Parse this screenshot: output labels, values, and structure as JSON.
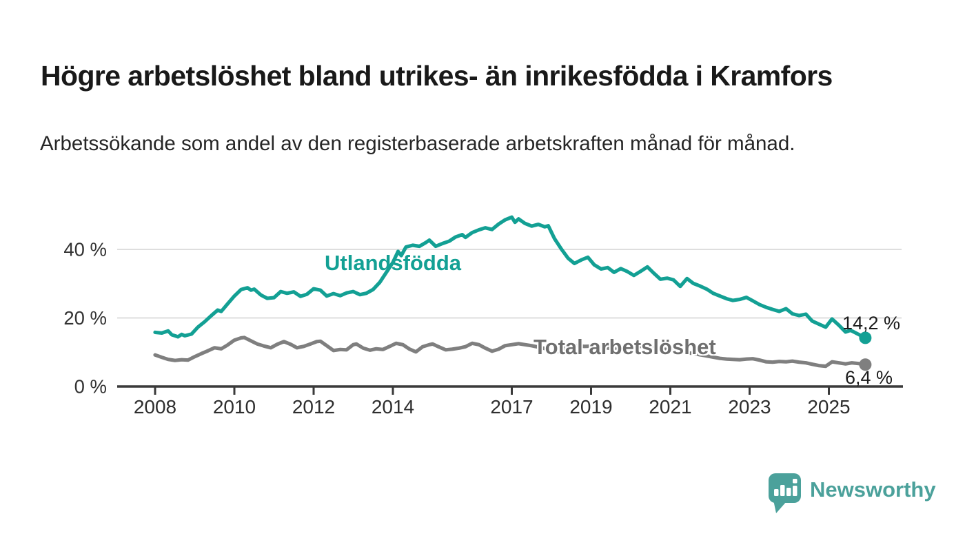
{
  "header": {
    "title": "Högre arbetslöshet bland utrikes- än inrikesfödda i Kramfors",
    "subtitle": "Arbetssökande som andel av den registerbaserade arbetskraften månad för månad."
  },
  "chart_data": {
    "type": "line",
    "title": "Högre arbetslöshet bland utrikes- än inrikesfödda i Kramfors",
    "subtitle": "Arbetssökande som andel av den registerbaserade arbetskraften månad för månad.",
    "x_unit": "year, monthly observations",
    "y_unit": "percent of registered labour force",
    "xlim": [
      2007.9,
      2026.3
    ],
    "ylim": [
      0,
      52
    ],
    "grid": "horizontal gridlines at 20 % and 40 % only",
    "legend_position": "inline labels on chart",
    "axis_color": "#3a3a3a",
    "grid_color": "#d9d9d9",
    "tick_label_color": "#2e2e2e",
    "x_ticks": [
      {
        "value": 2008,
        "label": "2008"
      },
      {
        "value": 2010,
        "label": "2010"
      },
      {
        "value": 2012,
        "label": "2012"
      },
      {
        "value": 2014,
        "label": "2014"
      },
      {
        "value": 2017,
        "label": "2017"
      },
      {
        "value": 2019,
        "label": "2019"
      },
      {
        "value": 2021,
        "label": "2021"
      },
      {
        "value": 2023,
        "label": "2023"
      },
      {
        "value": 2025,
        "label": "2025"
      }
    ],
    "y_ticks": [
      {
        "value": 0,
        "label": "0 %"
      },
      {
        "value": 20,
        "label": "20 %"
      },
      {
        "value": 40,
        "label": "40 %"
      }
    ],
    "series": [
      {
        "name": "Utlandsfödda",
        "color": "#13a094",
        "end_label": "14,2 %",
        "last_value": 14.2,
        "points": [
          [
            2008.0,
            15.8
          ],
          [
            2008.17,
            15.6
          ],
          [
            2008.33,
            16.2
          ],
          [
            2008.42,
            15.1
          ],
          [
            2008.58,
            14.5
          ],
          [
            2008.67,
            15.2
          ],
          [
            2008.75,
            14.8
          ],
          [
            2008.92,
            15.3
          ],
          [
            2009.08,
            17.3
          ],
          [
            2009.25,
            18.9
          ],
          [
            2009.42,
            20.7
          ],
          [
            2009.58,
            22.3
          ],
          [
            2009.67,
            21.9
          ],
          [
            2009.83,
            24.1
          ],
          [
            2010.0,
            26.4
          ],
          [
            2010.17,
            28.3
          ],
          [
            2010.33,
            28.8
          ],
          [
            2010.42,
            28.1
          ],
          [
            2010.5,
            28.4
          ],
          [
            2010.67,
            26.7
          ],
          [
            2010.83,
            25.7
          ],
          [
            2011.0,
            25.9
          ],
          [
            2011.17,
            27.7
          ],
          [
            2011.33,
            27.2
          ],
          [
            2011.5,
            27.6
          ],
          [
            2011.67,
            26.3
          ],
          [
            2011.83,
            26.9
          ],
          [
            2012.0,
            28.5
          ],
          [
            2012.17,
            28.1
          ],
          [
            2012.33,
            26.4
          ],
          [
            2012.5,
            27.1
          ],
          [
            2012.67,
            26.5
          ],
          [
            2012.83,
            27.3
          ],
          [
            2013.0,
            27.7
          ],
          [
            2013.17,
            26.8
          ],
          [
            2013.33,
            27.2
          ],
          [
            2013.5,
            28.3
          ],
          [
            2013.67,
            30.4
          ],
          [
            2013.83,
            33.2
          ],
          [
            2014.0,
            36.2
          ],
          [
            2014.13,
            39.4
          ],
          [
            2014.21,
            38.2
          ],
          [
            2014.33,
            40.7
          ],
          [
            2014.5,
            41.2
          ],
          [
            2014.67,
            40.9
          ],
          [
            2014.83,
            42.0
          ],
          [
            2014.92,
            42.7
          ],
          [
            2015.08,
            40.9
          ],
          [
            2015.25,
            41.7
          ],
          [
            2015.42,
            42.4
          ],
          [
            2015.58,
            43.6
          ],
          [
            2015.75,
            44.3
          ],
          [
            2015.83,
            43.5
          ],
          [
            2016.0,
            44.9
          ],
          [
            2016.17,
            45.7
          ],
          [
            2016.33,
            46.3
          ],
          [
            2016.5,
            45.8
          ],
          [
            2016.67,
            47.4
          ],
          [
            2016.83,
            48.6
          ],
          [
            2017.0,
            49.4
          ],
          [
            2017.08,
            47.9
          ],
          [
            2017.17,
            48.9
          ],
          [
            2017.33,
            47.6
          ],
          [
            2017.5,
            46.8
          ],
          [
            2017.67,
            47.3
          ],
          [
            2017.83,
            46.6
          ],
          [
            2017.92,
            46.9
          ],
          [
            2018.08,
            43.1
          ],
          [
            2018.25,
            40.1
          ],
          [
            2018.42,
            37.4
          ],
          [
            2018.58,
            35.9
          ],
          [
            2018.75,
            36.9
          ],
          [
            2018.92,
            37.7
          ],
          [
            2019.08,
            35.5
          ],
          [
            2019.25,
            34.3
          ],
          [
            2019.42,
            34.7
          ],
          [
            2019.58,
            33.3
          ],
          [
            2019.75,
            34.4
          ],
          [
            2019.92,
            33.5
          ],
          [
            2020.08,
            32.4
          ],
          [
            2020.25,
            33.6
          ],
          [
            2020.42,
            34.9
          ],
          [
            2020.58,
            33.1
          ],
          [
            2020.75,
            31.3
          ],
          [
            2020.92,
            31.6
          ],
          [
            2021.08,
            31.1
          ],
          [
            2021.25,
            29.2
          ],
          [
            2021.42,
            31.5
          ],
          [
            2021.58,
            30.1
          ],
          [
            2021.75,
            29.3
          ],
          [
            2021.92,
            28.4
          ],
          [
            2022.08,
            27.2
          ],
          [
            2022.25,
            26.4
          ],
          [
            2022.42,
            25.6
          ],
          [
            2022.58,
            25.1
          ],
          [
            2022.75,
            25.4
          ],
          [
            2022.92,
            26.0
          ],
          [
            2023.08,
            25.0
          ],
          [
            2023.25,
            23.9
          ],
          [
            2023.42,
            23.1
          ],
          [
            2023.58,
            22.5
          ],
          [
            2023.75,
            21.9
          ],
          [
            2023.92,
            22.7
          ],
          [
            2024.08,
            21.2
          ],
          [
            2024.25,
            20.7
          ],
          [
            2024.42,
            21.1
          ],
          [
            2024.58,
            19.1
          ],
          [
            2024.75,
            18.2
          ],
          [
            2024.92,
            17.3
          ],
          [
            2025.08,
            19.7
          ],
          [
            2025.25,
            17.9
          ],
          [
            2025.42,
            15.9
          ],
          [
            2025.55,
            16.4
          ],
          [
            2025.7,
            15.5
          ],
          [
            2025.92,
            14.2
          ]
        ]
      },
      {
        "name": "Total arbetslöshet",
        "color": "#7f7f7f",
        "end_label": "6,4 %",
        "last_value": 6.4,
        "points": [
          [
            2008.0,
            9.2
          ],
          [
            2008.17,
            8.5
          ],
          [
            2008.33,
            7.9
          ],
          [
            2008.5,
            7.6
          ],
          [
            2008.67,
            7.8
          ],
          [
            2008.83,
            7.7
          ],
          [
            2009.0,
            8.7
          ],
          [
            2009.17,
            9.6
          ],
          [
            2009.33,
            10.4
          ],
          [
            2009.5,
            11.3
          ],
          [
            2009.67,
            11.0
          ],
          [
            2009.83,
            12.1
          ],
          [
            2010.0,
            13.5
          ],
          [
            2010.17,
            14.2
          ],
          [
            2010.25,
            14.3
          ],
          [
            2010.42,
            13.3
          ],
          [
            2010.58,
            12.4
          ],
          [
            2010.75,
            11.8
          ],
          [
            2010.92,
            11.3
          ],
          [
            2011.08,
            12.3
          ],
          [
            2011.25,
            13.1
          ],
          [
            2011.42,
            12.3
          ],
          [
            2011.58,
            11.3
          ],
          [
            2011.75,
            11.7
          ],
          [
            2011.92,
            12.4
          ],
          [
            2012.08,
            13.1
          ],
          [
            2012.17,
            13.2
          ],
          [
            2012.33,
            11.9
          ],
          [
            2012.5,
            10.5
          ],
          [
            2012.67,
            10.8
          ],
          [
            2012.83,
            10.7
          ],
          [
            2013.0,
            12.2
          ],
          [
            2013.08,
            12.4
          ],
          [
            2013.25,
            11.2
          ],
          [
            2013.42,
            10.6
          ],
          [
            2013.58,
            11.0
          ],
          [
            2013.75,
            10.8
          ],
          [
            2013.92,
            11.7
          ],
          [
            2014.08,
            12.6
          ],
          [
            2014.25,
            12.2
          ],
          [
            2014.42,
            10.9
          ],
          [
            2014.58,
            10.1
          ],
          [
            2014.75,
            11.6
          ],
          [
            2014.92,
            12.2
          ],
          [
            2015.0,
            12.4
          ],
          [
            2015.17,
            11.5
          ],
          [
            2015.33,
            10.7
          ],
          [
            2015.5,
            10.9
          ],
          [
            2015.67,
            11.2
          ],
          [
            2015.83,
            11.6
          ],
          [
            2016.0,
            12.6
          ],
          [
            2016.17,
            12.2
          ],
          [
            2016.33,
            11.2
          ],
          [
            2016.5,
            10.3
          ],
          [
            2016.67,
            10.9
          ],
          [
            2016.83,
            11.9
          ],
          [
            2017.0,
            12.2
          ],
          [
            2017.17,
            12.5
          ],
          [
            2017.33,
            12.2
          ],
          [
            2017.5,
            11.9
          ],
          [
            2017.67,
            11.5
          ],
          [
            2017.83,
            11.1
          ],
          [
            2018.0,
            9.9
          ],
          [
            2018.17,
            10.2
          ],
          [
            2018.33,
            11.1
          ],
          [
            2018.58,
            12.0
          ],
          [
            2018.83,
            11.7
          ],
          [
            2019.08,
            11.8
          ],
          [
            2019.5,
            11.1
          ],
          [
            2019.92,
            11.3
          ],
          [
            2020.33,
            11.8
          ],
          [
            2020.75,
            11.1
          ],
          [
            2021.17,
            10.3
          ],
          [
            2021.58,
            9.6
          ],
          [
            2021.92,
            8.9
          ],
          [
            2022.25,
            8.2
          ],
          [
            2022.42,
            8.0
          ],
          [
            2022.58,
            7.9
          ],
          [
            2022.75,
            7.8
          ],
          [
            2022.92,
            8.0
          ],
          [
            2023.08,
            8.1
          ],
          [
            2023.25,
            7.7
          ],
          [
            2023.42,
            7.2
          ],
          [
            2023.58,
            7.1
          ],
          [
            2023.75,
            7.3
          ],
          [
            2023.92,
            7.2
          ],
          [
            2024.08,
            7.4
          ],
          [
            2024.25,
            7.1
          ],
          [
            2024.42,
            6.9
          ],
          [
            2024.58,
            6.5
          ],
          [
            2024.75,
            6.1
          ],
          [
            2024.92,
            5.9
          ],
          [
            2025.08,
            7.2
          ],
          [
            2025.25,
            6.9
          ],
          [
            2025.42,
            6.6
          ],
          [
            2025.58,
            6.9
          ],
          [
            2025.75,
            6.7
          ],
          [
            2025.92,
            6.4
          ]
        ]
      }
    ]
  },
  "footer": {
    "brand": "Newsworthy",
    "accent_color": "#4ba19b",
    "icon": "speech-bubble-bar-chart-icon"
  }
}
